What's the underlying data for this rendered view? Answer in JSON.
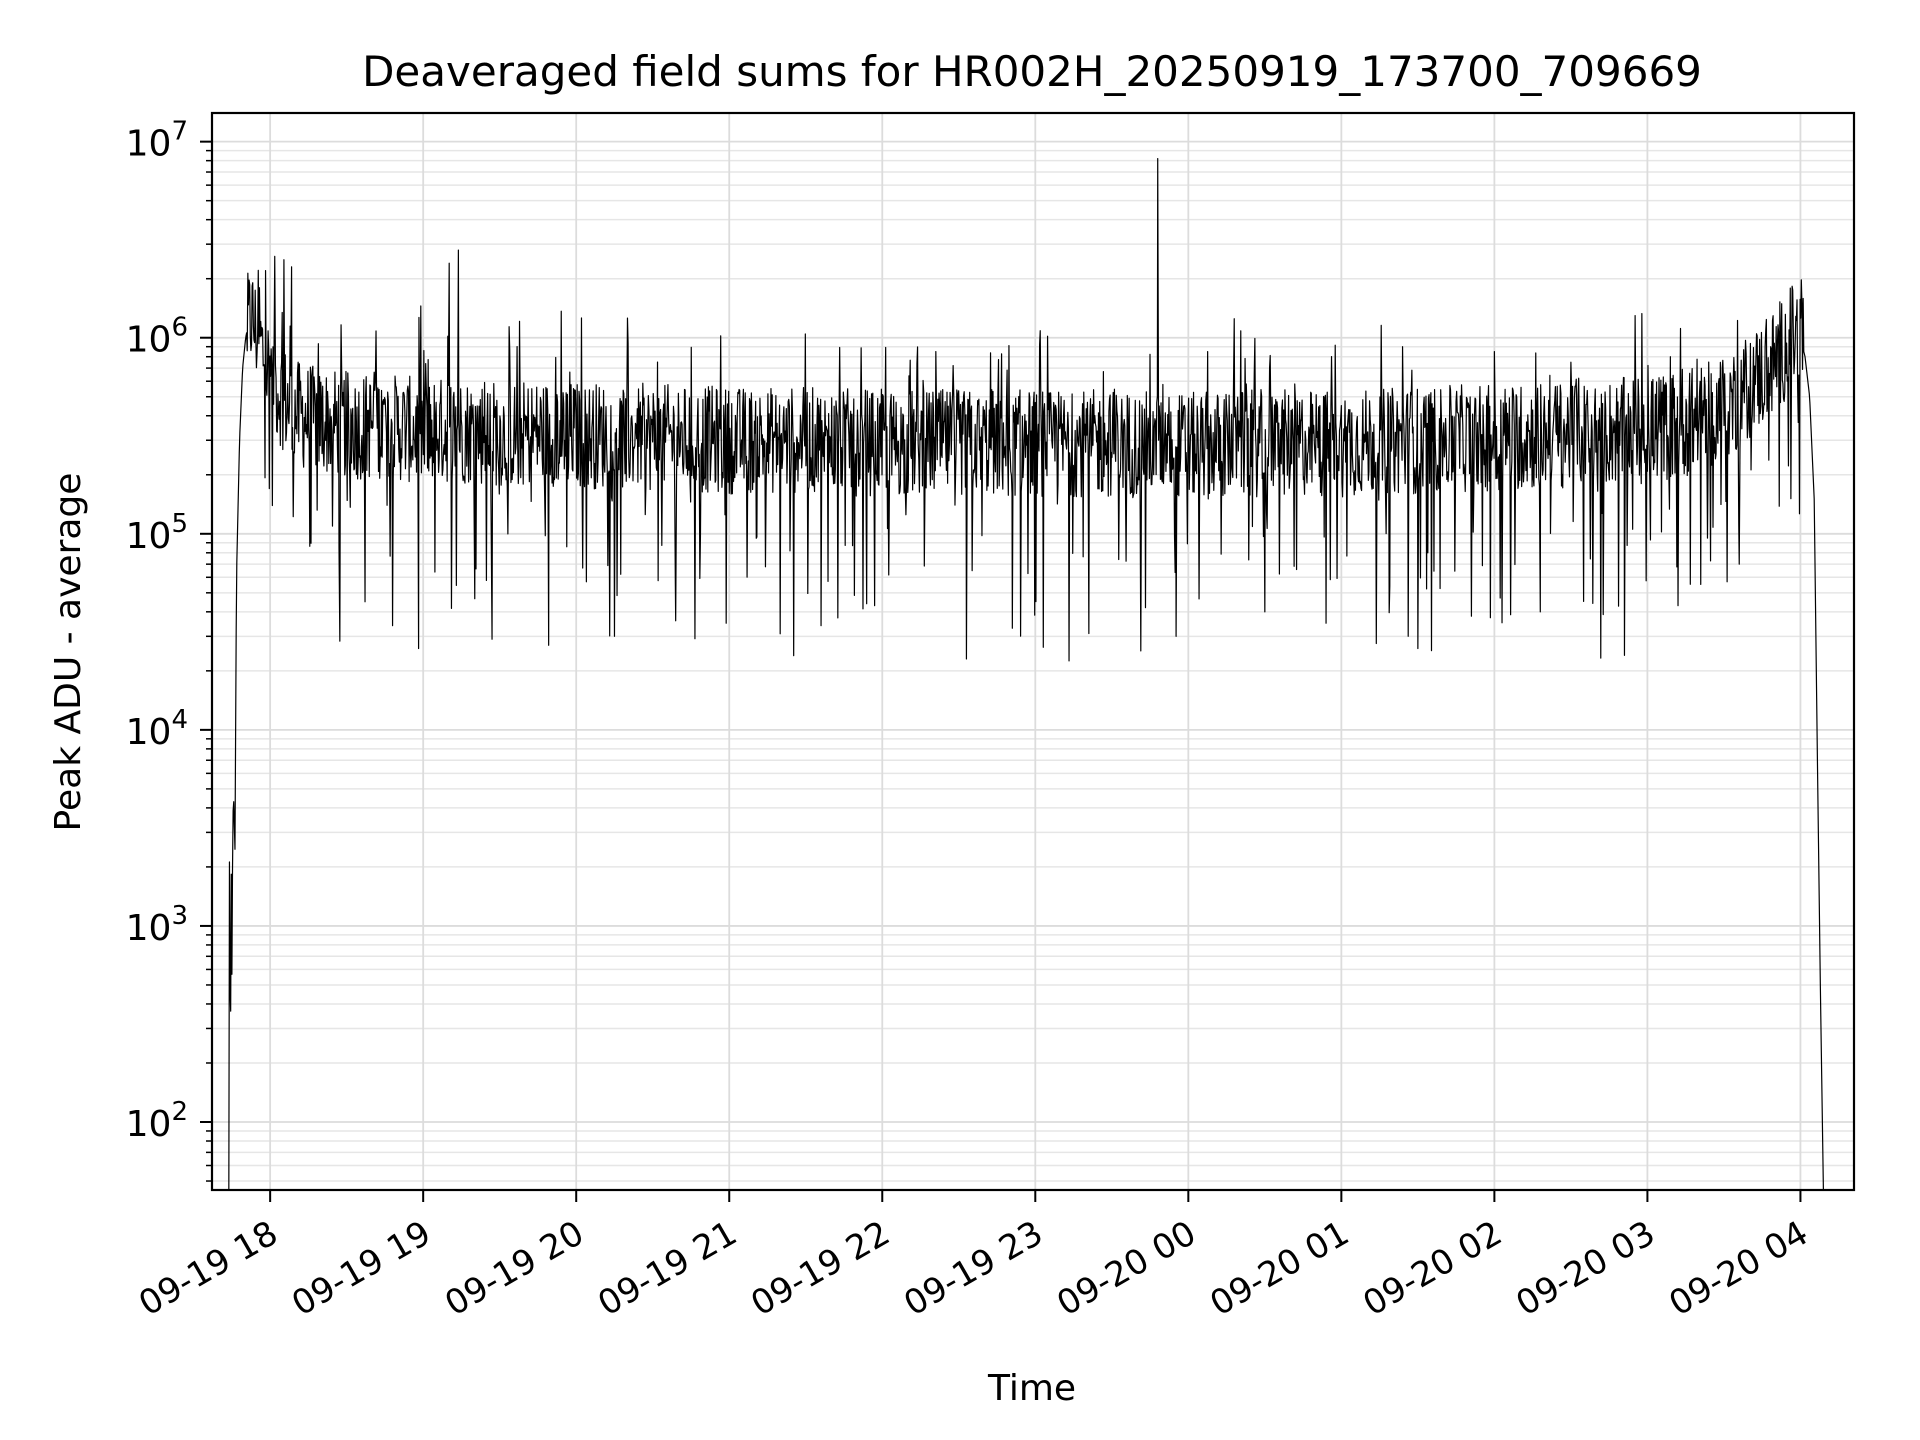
{
  "chart_data": {
    "type": "line",
    "title": "Deaveraged field sums for HR002H_20250919_173700_709669",
    "xlabel": "Time",
    "ylabel": "Peak ADU - average",
    "yscale": "log",
    "ylim": [
      45,
      14000000
    ],
    "xlim": [
      17.62,
      28.35
    ],
    "grid": true,
    "line_color": "#000000",
    "x_ticks": [
      {
        "value": 18,
        "label": "09-19 18"
      },
      {
        "value": 19,
        "label": "09-19 19"
      },
      {
        "value": 20,
        "label": "09-19 20"
      },
      {
        "value": 21,
        "label": "09-19 21"
      },
      {
        "value": 22,
        "label": "09-19 22"
      },
      {
        "value": 23,
        "label": "09-19 23"
      },
      {
        "value": 24,
        "label": "09-20 00"
      },
      {
        "value": 25,
        "label": "09-20 01"
      },
      {
        "value": 26,
        "label": "09-20 02"
      },
      {
        "value": 27,
        "label": "09-20 03"
      },
      {
        "value": 28,
        "label": "09-20 04"
      }
    ],
    "y_ticks": [
      {
        "value": 100,
        "base": "10",
        "exp": "2"
      },
      {
        "value": 1000,
        "base": "10",
        "exp": "3"
      },
      {
        "value": 10000,
        "base": "10",
        "exp": "4"
      },
      {
        "value": 100000,
        "base": "10",
        "exp": "5"
      },
      {
        "value": 1000000,
        "base": "10",
        "exp": "6"
      },
      {
        "value": 10000000,
        "base": "10",
        "exp": "7"
      }
    ],
    "series": [
      {
        "name": "Peak ADU - average",
        "x": [
          17.73,
          17.735,
          17.74,
          17.745,
          17.75,
          17.755,
          17.76,
          17.77,
          17.78,
          17.8,
          17.82,
          17.84,
          17.86,
          17.88,
          17.9,
          17.93,
          17.96,
          18.0,
          18.05,
          18.1,
          18.15,
          18.2,
          18.3,
          18.4,
          18.5,
          18.6,
          18.7,
          18.8,
          18.9,
          19.0,
          19.2,
          19.4,
          19.6,
          19.8,
          20.0,
          20.5,
          21.0,
          21.5,
          22.0,
          22.5,
          23.0,
          23.5,
          24.0,
          24.5,
          25.0,
          25.5,
          26.0,
          26.5,
          27.0,
          27.2,
          27.4,
          27.6,
          27.7,
          27.8,
          27.85,
          27.9,
          27.95,
          28.0,
          28.03,
          28.06,
          28.09,
          28.11,
          28.13,
          28.14,
          28.15
        ],
        "values": [
          45,
          5500,
          100,
          2500,
          560,
          2600,
          5000,
          2400,
          60000,
          300000,
          700000,
          1000000,
          1200000,
          1300000,
          1100000,
          1000000,
          800000,
          650000,
          550000,
          480000,
          420000,
          400000,
          380000,
          370000,
          360000,
          350000,
          360000,
          350000,
          340000,
          330000,
          340000,
          330000,
          320000,
          330000,
          320000,
          310000,
          300000,
          300000,
          290000,
          290000,
          290000,
          290000,
          280000,
          290000,
          290000,
          300000,
          310000,
          320000,
          340000,
          360000,
          400000,
          500000,
          600000,
          700000,
          800000,
          900000,
          1000000,
          1000000,
          800000,
          500000,
          150000,
          8000,
          500,
          150,
          45
        ],
        "spikes": [
          {
            "x": 17.93,
            "value": 1800000
          },
          {
            "x": 17.97,
            "value": 2200000
          },
          {
            "x": 18.03,
            "value": 2600000
          },
          {
            "x": 18.09,
            "value": 2500000
          },
          {
            "x": 18.14,
            "value": 2300000
          },
          {
            "x": 19.17,
            "value": 2400000
          },
          {
            "x": 19.23,
            "value": 2800000
          },
          {
            "x": 19.82,
            "value": 1050000
          },
          {
            "x": 23.8,
            "value": 8200000
          },
          {
            "x": 24.3,
            "value": 1250000
          },
          {
            "x": 22.35,
            "value": 850000
          },
          {
            "x": 26.0,
            "value": 850000
          },
          {
            "x": 26.5,
            "value": 750000
          },
          {
            "x": 27.15,
            "value": 800000
          },
          {
            "x": 25.4,
            "value": 900000
          }
        ],
        "dips": [
          {
            "x": 18.45,
            "value": 85000
          },
          {
            "x": 18.62,
            "value": 45000
          },
          {
            "x": 18.8,
            "value": 34000
          },
          {
            "x": 18.97,
            "value": 26000
          },
          {
            "x": 19.45,
            "value": 29000
          },
          {
            "x": 19.82,
            "value": 27000
          },
          {
            "x": 20.25,
            "value": 30000
          },
          {
            "x": 20.65,
            "value": 36000
          },
          {
            "x": 20.98,
            "value": 35000
          },
          {
            "x": 21.6,
            "value": 34000
          },
          {
            "x": 21.95,
            "value": 43000
          },
          {
            "x": 22.55,
            "value": 23000
          },
          {
            "x": 22.85,
            "value": 33000
          },
          {
            "x": 23.35,
            "value": 31000
          },
          {
            "x": 23.72,
            "value": 42000
          },
          {
            "x": 23.92,
            "value": 30000
          },
          {
            "x": 24.5,
            "value": 40000
          },
          {
            "x": 24.9,
            "value": 35000
          },
          {
            "x": 25.5,
            "value": 26000
          },
          {
            "x": 25.85,
            "value": 38000
          },
          {
            "x": 26.3,
            "value": 40000
          },
          {
            "x": 26.85,
            "value": 24000
          },
          {
            "x": 27.2,
            "value": 43000
          },
          {
            "x": 27.6,
            "value": 70000
          }
        ]
      }
    ]
  }
}
